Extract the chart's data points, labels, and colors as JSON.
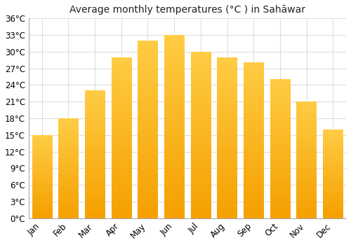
{
  "title": "Average monthly temperatures (°C ) in Sahāwar",
  "months": [
    "Jan",
    "Feb",
    "Mar",
    "Apr",
    "May",
    "Jun",
    "Jul",
    "Aug",
    "Sep",
    "Oct",
    "Nov",
    "Dec"
  ],
  "values": [
    15,
    18,
    23,
    29,
    32,
    33,
    30,
    29,
    28,
    25,
    21,
    16
  ],
  "bar_color_top": "#FFCC44",
  "bar_color_bottom": "#F5A000",
  "ylim": [
    0,
    36
  ],
  "yticks": [
    0,
    3,
    6,
    9,
    12,
    15,
    18,
    21,
    24,
    27,
    30,
    33,
    36
  ],
  "ytick_labels": [
    "0°C",
    "3°C",
    "6°C",
    "9°C",
    "12°C",
    "15°C",
    "18°C",
    "21°C",
    "24°C",
    "27°C",
    "30°C",
    "33°C",
    "36°C"
  ],
  "background_color": "#ffffff",
  "grid_color": "#dddddd",
  "title_fontsize": 10,
  "tick_fontsize": 8.5,
  "bar_width": 0.75
}
